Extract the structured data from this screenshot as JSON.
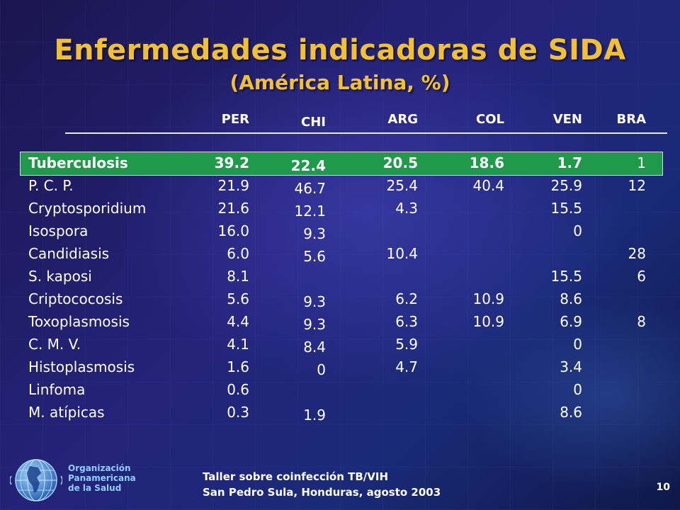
{
  "title": "Enfermedades indicadoras de SIDA",
  "subtitle": "(América Latina, %)",
  "columns": [
    "PER",
    "CHI",
    "ARG",
    "COL",
    "VEN",
    "BRA"
  ],
  "rows": [
    {
      "label": "Tuberculosis",
      "values": [
        "39.2",
        "22.4",
        "20.5",
        "18.6",
        "1.7",
        "1"
      ],
      "highlight": true
    },
    {
      "label": "P. C. P.",
      "values": [
        "21.9",
        "46.7",
        "25.4",
        "40.4",
        "25.9",
        "12"
      ]
    },
    {
      "label": "Cryptosporidium",
      "values": [
        "21.6",
        "12.1",
        "4.3",
        "",
        "15.5",
        ""
      ]
    },
    {
      "label": "Isospora",
      "values": [
        "16.0",
        "9.3",
        "",
        "",
        "0",
        ""
      ]
    },
    {
      "label": "Candidiasis",
      "values": [
        "6.0",
        "5.6",
        "10.4",
        "",
        "",
        "28"
      ]
    },
    {
      "label": "S. kaposi",
      "values": [
        "8.1",
        "",
        "",
        "",
        "15.5",
        "6"
      ]
    },
    {
      "label": "Criptococosis",
      "values": [
        "5.6",
        "9.3",
        "6.2",
        "10.9",
        "8.6",
        ""
      ]
    },
    {
      "label": "Toxoplasmosis",
      "values": [
        "4.4",
        "9.3",
        "6.3",
        "10.9",
        "6.9",
        "8"
      ]
    },
    {
      "label": "C. M. V.",
      "values": [
        "4.1",
        "8.4",
        "5.9",
        "",
        "0",
        ""
      ]
    },
    {
      "label": "Histoplasmosis",
      "values": [
        "1.6",
        "0",
        "4.7",
        "",
        "3.4",
        ""
      ]
    },
    {
      "label": "Linfoma",
      "values": [
        "0.6",
        "",
        "",
        "",
        "0",
        ""
      ]
    },
    {
      "label": "M. atípicas",
      "values": [
        "0.3",
        "1.9",
        "",
        "",
        "8.6",
        ""
      ]
    }
  ],
  "organization": [
    "Organización",
    "Panamericana",
    "de la Salud"
  ],
  "footer": {
    "line1": "Taller sobre coinfección TB/VIH",
    "line2": "San Pedro Sula, Honduras, agosto 2003"
  },
  "page_number": "10",
  "colors": {
    "title": "#f2c030",
    "highlight_row": "#1f9a4a",
    "org_text": "#8fd0ff"
  },
  "icons": {
    "logo": "paho-globe-logo"
  }
}
